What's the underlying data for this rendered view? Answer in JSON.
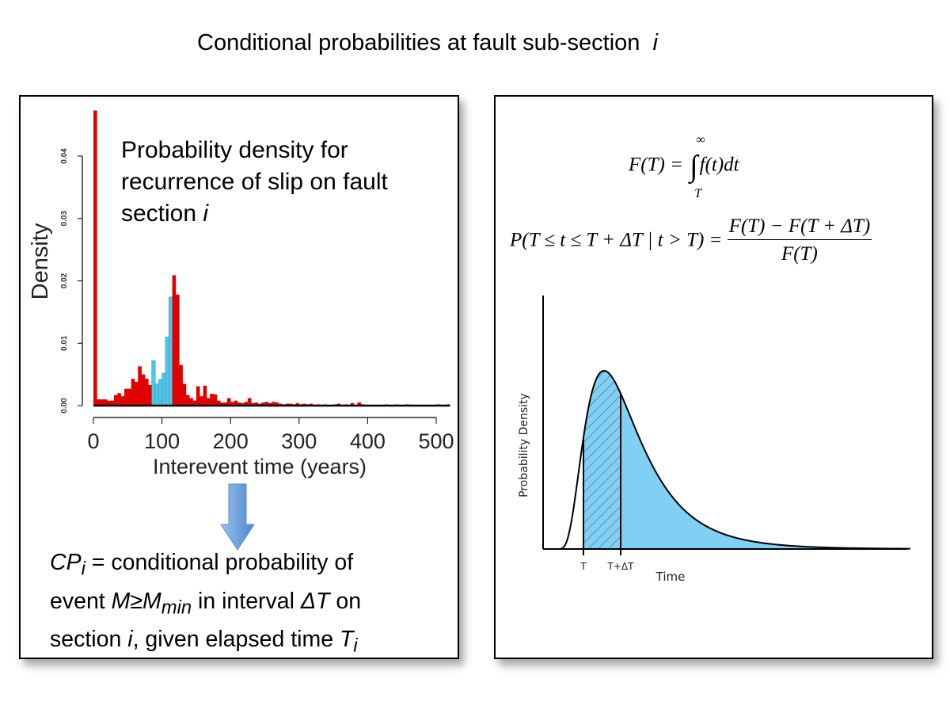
{
  "title": "Conditional probabilities at fault sub-section",
  "title_index": "i",
  "left_panel": {
    "annotation": {
      "line1": "Probability density for",
      "line2": "recurrence of slip on fault",
      "line3": "section ",
      "index": "i"
    },
    "bottom_text": {
      "cp": "CP",
      "cp_sub": "i",
      "part1": " = conditional probability of",
      "part2": "event ",
      "m": "M",
      "ge": "≥",
      "m2": "M",
      "m_sub": "min",
      "part3": " in interval ",
      "dt": "ΔT",
      "part4": " on",
      "part5": "section ",
      "i": "i",
      "part6": ", given elapsed time ",
      "t": "T",
      "t_sub": "i"
    },
    "arrow_icon": "down-arrow",
    "colors": {
      "bars": "#e00000",
      "highlight": "#4ec6e6"
    }
  },
  "right_panel": {
    "eq1": {
      "lhs": "F(T) = ",
      "integral": "∫",
      "upper": "∞",
      "lower": "T",
      "rhs": "f(t)dt"
    },
    "eq2": {
      "lhs": "P(T ≤ t ≤ T + ΔT | t > T) = ",
      "num": "F(T) − F(T + ΔT)",
      "den": "F(T)"
    },
    "diagram": {
      "ylabel": "Probability Density",
      "xlabel": "Time",
      "tick_T": "T",
      "tick_TdT": "T+ΔT",
      "fill": "#80d0f4"
    }
  },
  "chart_data": {
    "type": "bar",
    "title": "Probability density for recurrence of slip on fault section i",
    "xlabel": "Interevent time (years)",
    "ylabel": "Density",
    "xlim": [
      0,
      520
    ],
    "ylim": [
      0,
      0.047
    ],
    "xticks": [
      "0",
      "100",
      "200",
      "300",
      "400",
      "500"
    ],
    "yticks": [
      "0.00",
      "0.01",
      "0.02",
      "0.03",
      "0.04"
    ],
    "bin_width": 5,
    "highlight_range": [
      85,
      115
    ],
    "values": [
      0.0473,
      0.001,
      0.001,
      0.001,
      0.0008,
      0.0008,
      0.0017,
      0.002,
      0.0015,
      0.0027,
      0.0027,
      0.0043,
      0.0038,
      0.0063,
      0.005,
      0.0043,
      0.0033,
      0.0072,
      0.0035,
      0.0042,
      0.0052,
      0.011,
      0.0174,
      0.0209,
      0.0178,
      0.0065,
      0.0035,
      0.0017,
      0.0012,
      0.0008,
      0.0031,
      0.0015,
      0.0032,
      0.0012,
      0.0019,
      0.0018,
      0.0008,
      0.0005,
      0.0005,
      0.0012,
      0.0006,
      0.0008,
      0.0005,
      0.0004,
      0.0006,
      0.0012,
      0.0004,
      0.0005,
      0.0003,
      0.0005,
      0.0006,
      0.0004,
      0.0006,
      0.0005,
      0.0003,
      0.0002,
      0.0003,
      0.0003,
      0.0002,
      0.0004,
      0.0002,
      0.0003,
      0.0002,
      0.0003,
      0.0001,
      0.0002,
      0.0001,
      0.0002,
      0.0001,
      0.0001,
      0.0002,
      0.0003,
      0.0001,
      0.0002,
      0.0001,
      0.0004,
      0.0001,
      0.0005,
      0.0002,
      0.0001,
      0,
      0,
      0,
      0,
      0,
      0.0002,
      0,
      0,
      0.0002,
      0,
      0,
      0.0002,
      0,
      0,
      0,
      0,
      0,
      0,
      0,
      0,
      0.0002,
      0,
      0,
      0.0002
    ]
  }
}
